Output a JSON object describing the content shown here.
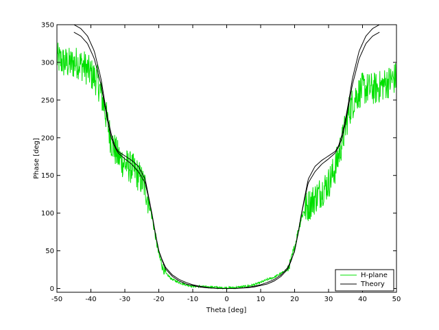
{
  "chart_data": {
    "type": "line",
    "title": "",
    "xlabel": "Theta [deg]",
    "ylabel": "Phase [deg]",
    "xlim": [
      -50,
      50
    ],
    "ylim": [
      -5,
      350
    ],
    "xticks": [
      -50,
      -40,
      -30,
      -20,
      -10,
      0,
      10,
      20,
      30,
      40,
      50
    ],
    "yticks": [
      0,
      50,
      100,
      150,
      200,
      250,
      300,
      350
    ],
    "grid": false,
    "legend": "bottom-right",
    "series": [
      {
        "name": "H-plane",
        "color": "#00e000",
        "style": "noisy",
        "x": [
          -50,
          -48,
          -46,
          -44,
          -42,
          -40,
          -38,
          -36,
          -34,
          -32,
          -30,
          -28,
          -26,
          -24,
          -23,
          -22,
          -21,
          -20,
          -19,
          -18,
          -16,
          -14,
          -12,
          -10,
          -8,
          -6,
          -4,
          -2,
          0,
          2,
          4,
          6,
          8,
          10,
          12,
          14,
          16,
          18,
          19,
          20,
          21,
          22,
          23,
          24,
          26,
          28,
          30,
          32,
          34,
          36,
          38,
          40,
          42,
          44,
          46,
          48,
          50
        ],
        "y": [
          305,
          300,
          298,
          300,
          295,
          285,
          275,
          240,
          195,
          175,
          165,
          160,
          150,
          135,
          115,
          95,
          70,
          45,
          30,
          20,
          12,
          8,
          5,
          3,
          3,
          2,
          2,
          1,
          1,
          1,
          2,
          3,
          5,
          8,
          12,
          15,
          20,
          25,
          38,
          55,
          75,
          95,
          105,
          110,
          120,
          130,
          140,
          160,
          195,
          235,
          255,
          265,
          265,
          265,
          270,
          275,
          280
        ]
      },
      {
        "name": "Theory",
        "color": "#000000",
        "style": "solid",
        "x": [
          -45,
          -43,
          -41,
          -39,
          -37,
          -36,
          -35,
          -34,
          -33,
          -32,
          -30,
          -28,
          -26,
          -24,
          -23,
          -22,
          -21,
          -20,
          -19,
          -18,
          -16,
          -14,
          -12,
          -10,
          -8,
          -6,
          -4,
          -2,
          0,
          2,
          4,
          6,
          8,
          10,
          12,
          14,
          16,
          18,
          19,
          20,
          21,
          22,
          23,
          24,
          26,
          28,
          30,
          32,
          33,
          34,
          35,
          36,
          37,
          39,
          41,
          43,
          45
        ],
        "y": [
          340,
          335,
          325,
          305,
          270,
          245,
          220,
          200,
          188,
          180,
          172,
          165,
          155,
          140,
          120,
          98,
          72,
          50,
          38,
          28,
          18,
          12,
          8,
          5,
          3,
          1.5,
          0.5,
          0,
          0,
          0,
          0.5,
          1.5,
          3,
          5,
          8,
          12,
          18,
          28,
          38,
          50,
          72,
          98,
          120,
          140,
          155,
          165,
          172,
          180,
          188,
          200,
          220,
          245,
          270,
          305,
          325,
          335,
          340
        ]
      },
      {
        "name": "",
        "color": "#000000",
        "style": "solid",
        "x": [
          -45,
          -43,
          -41,
          -39,
          -37,
          -36,
          -35,
          -34,
          -33,
          -32,
          -30,
          -28,
          -26,
          -24,
          -23,
          -22,
          -21,
          -20,
          -19,
          -18,
          -16,
          -14,
          -12,
          -10,
          -8,
          -6,
          -4,
          -2,
          0,
          2,
          4,
          6,
          8,
          10,
          12,
          14,
          16,
          18,
          19,
          20,
          21,
          22,
          23,
          24,
          26,
          28,
          30,
          32,
          33,
          34,
          35,
          36,
          37,
          39,
          41,
          43,
          45
        ],
        "y": [
          350,
          345,
          335,
          315,
          278,
          250,
          225,
          205,
          190,
          182,
          176,
          170,
          162,
          145,
          122,
          99,
          73,
          50,
          37,
          26,
          16,
          10,
          6,
          4,
          2,
          1,
          0.5,
          0,
          0,
          0,
          0.5,
          1,
          2,
          4,
          6,
          10,
          16,
          26,
          37,
          50,
          73,
          99,
          122,
          145,
          162,
          170,
          176,
          182,
          190,
          205,
          225,
          250,
          278,
          315,
          335,
          345,
          350
        ]
      }
    ]
  }
}
